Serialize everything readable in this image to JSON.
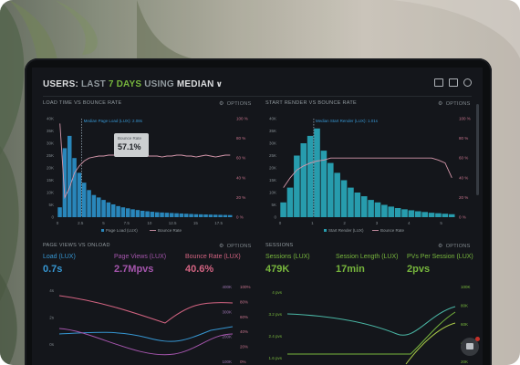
{
  "header": {
    "title_prefix": "USERS: ",
    "title_dim": "LAST ",
    "title_accent": "7 DAYS",
    "title_mid": " USING ",
    "title_bold": "MEDIAN",
    "title_chevron": "∨"
  },
  "panels": {
    "load_time": {
      "title": "LOAD TIME VS BOUNCE RATE",
      "options": "OPTIONS",
      "median_label": "Median Page Load (LUX): 2.08s",
      "tooltip_label": "Bounce Rate",
      "tooltip_value": "57.1%",
      "legend_1": "Page Load (LUX)",
      "legend_2": "Bounce Rate"
    },
    "start_render": {
      "title": "START RENDER VS BOUNCE RATE",
      "options": "OPTIONS",
      "median_label": "Median Start Render (LUX): 1.01s",
      "legend_1": "Start Render (LUX)",
      "legend_2": "Bounce Rate"
    },
    "page_views": {
      "title": "PAGE VIEWS VS ONLOAD",
      "options": "OPTIONS",
      "kpis": [
        {
          "label": "Load (LUX)",
          "value": "0.7s",
          "color": "#3aa0e0"
        },
        {
          "label": "Page Views (LUX)",
          "value": "2.7Mpvs",
          "color": "#b05bb8"
        },
        {
          "label": "Bounce Rate (LUX)",
          "value": "40.6%",
          "color": "#e06a8a"
        }
      ]
    },
    "sessions": {
      "title": "SESSIONS",
      "options": "OPTIONS",
      "kpis": [
        {
          "label": "Sessions (LUX)",
          "value": "479K",
          "color": "#7fc241"
        },
        {
          "label": "Session Length (LUX)",
          "value": "17min",
          "color": "#7fc241"
        },
        {
          "label": "PVs Per Session (LUX)",
          "value": "2pvs",
          "color": "#7fc241"
        }
      ]
    }
  },
  "charts": {
    "chart1": {
      "yleft_ticks": [
        "40K",
        "35K",
        "30K",
        "25K",
        "20K",
        "15K",
        "10K",
        "5K",
        "0"
      ],
      "yright_ticks": [
        "100 %",
        "80 %",
        "60 %",
        "40 %",
        "20 %",
        "0 %"
      ],
      "xticks": [
        "0",
        "2.5",
        "5",
        "7.5",
        "10",
        "12.5",
        "15",
        "17.5"
      ]
    },
    "chart2": {
      "yleft_ticks": [
        "40K",
        "35K",
        "30K",
        "25K",
        "20K",
        "15K",
        "10K",
        "5K",
        "0"
      ],
      "yright_ticks": [
        "100 %",
        "80 %",
        "60 %",
        "40 %",
        "20 %",
        "0 %"
      ],
      "xticks": [
        "0",
        "1",
        "2",
        "3",
        "4",
        "5"
      ]
    },
    "chart3": {
      "yleft_ticks": [
        "4s",
        "2s",
        "0s"
      ],
      "yright_ticks": [
        "100%",
        "80%",
        "60%",
        "40%",
        "20%",
        "0%"
      ],
      "yright_pv": [
        "400K",
        "300K",
        "200K",
        "100K"
      ]
    },
    "chart4": {
      "yleft_ticks": [
        "4 pvs",
        "3.2 pvs",
        "2.4 pvs",
        "1.6 pvs"
      ],
      "yright_ticks": [
        "100K",
        "80K",
        "60K",
        "40K",
        "20K"
      ]
    }
  },
  "chart_data": [
    {
      "type": "bar",
      "title": "LOAD TIME VS BOUNCE RATE",
      "xlabel": "",
      "ylabel": "",
      "ylim": [
        0,
        40000
      ],
      "categories": [
        "0",
        "0.5",
        "1",
        "1.5",
        "2",
        "2.5",
        "3",
        "3.5",
        "4",
        "4.5",
        "5",
        "5.5",
        "6",
        "6.5",
        "7",
        "7.5",
        "8",
        "8.5",
        "9",
        "9.5",
        "10",
        "10.5",
        "11",
        "11.5",
        "12",
        "12.5",
        "13",
        "13.5",
        "14",
        "14.5",
        "15",
        "15.5",
        "16",
        "16.5",
        "17",
        "17.5"
      ],
      "series": [
        {
          "name": "Page Load (LUX)",
          "values": [
            4000,
            28000,
            33000,
            24000,
            18000,
            14000,
            11000,
            9000,
            8000,
            7000,
            6000,
            5200,
            4500,
            4000,
            3600,
            3200,
            2900,
            2600,
            2400,
            2200,
            2000,
            1900,
            1800,
            1700,
            1600,
            1500,
            1400,
            1300,
            1200,
            1150,
            1100,
            1050,
            1000,
            950,
            900,
            850
          ]
        },
        {
          "name": "Bounce Rate",
          "values": [
            95,
            20,
            30,
            45,
            52,
            57,
            60,
            61,
            62,
            62,
            63,
            63,
            63,
            64,
            64,
            64,
            63,
            63,
            62,
            62,
            62,
            61,
            62,
            62,
            63,
            63,
            62,
            62,
            61,
            62,
            63,
            62,
            61,
            62,
            63,
            63
          ]
        }
      ]
    },
    {
      "type": "bar",
      "title": "START RENDER VS BOUNCE RATE",
      "xlabel": "",
      "ylabel": "",
      "ylim": [
        0,
        40000
      ],
      "categories": [
        "0",
        "0.2",
        "0.4",
        "0.6",
        "0.8",
        "1",
        "1.2",
        "1.4",
        "1.6",
        "1.8",
        "2",
        "2.2",
        "2.4",
        "2.6",
        "2.8",
        "3",
        "3.2",
        "3.4",
        "3.6",
        "3.8",
        "4",
        "4.2",
        "4.4",
        "4.6",
        "4.8",
        "5"
      ],
      "series": [
        {
          "name": "Start Render (LUX)",
          "values": [
            6000,
            12000,
            25000,
            30000,
            33000,
            36000,
            27000,
            22000,
            18000,
            15000,
            12000,
            10000,
            8500,
            7000,
            6000,
            5000,
            4300,
            3700,
            3200,
            2800,
            2400,
            2100,
            1800,
            1600,
            1400,
            1200
          ]
        },
        {
          "name": "Bounce Rate",
          "values": [
            30,
            40,
            48,
            52,
            55,
            57,
            58,
            60,
            60,
            60,
            60,
            60,
            60,
            60,
            60,
            60,
            60,
            60,
            60,
            60,
            60,
            60,
            60,
            58,
            55,
            40
          ]
        }
      ]
    }
  ]
}
